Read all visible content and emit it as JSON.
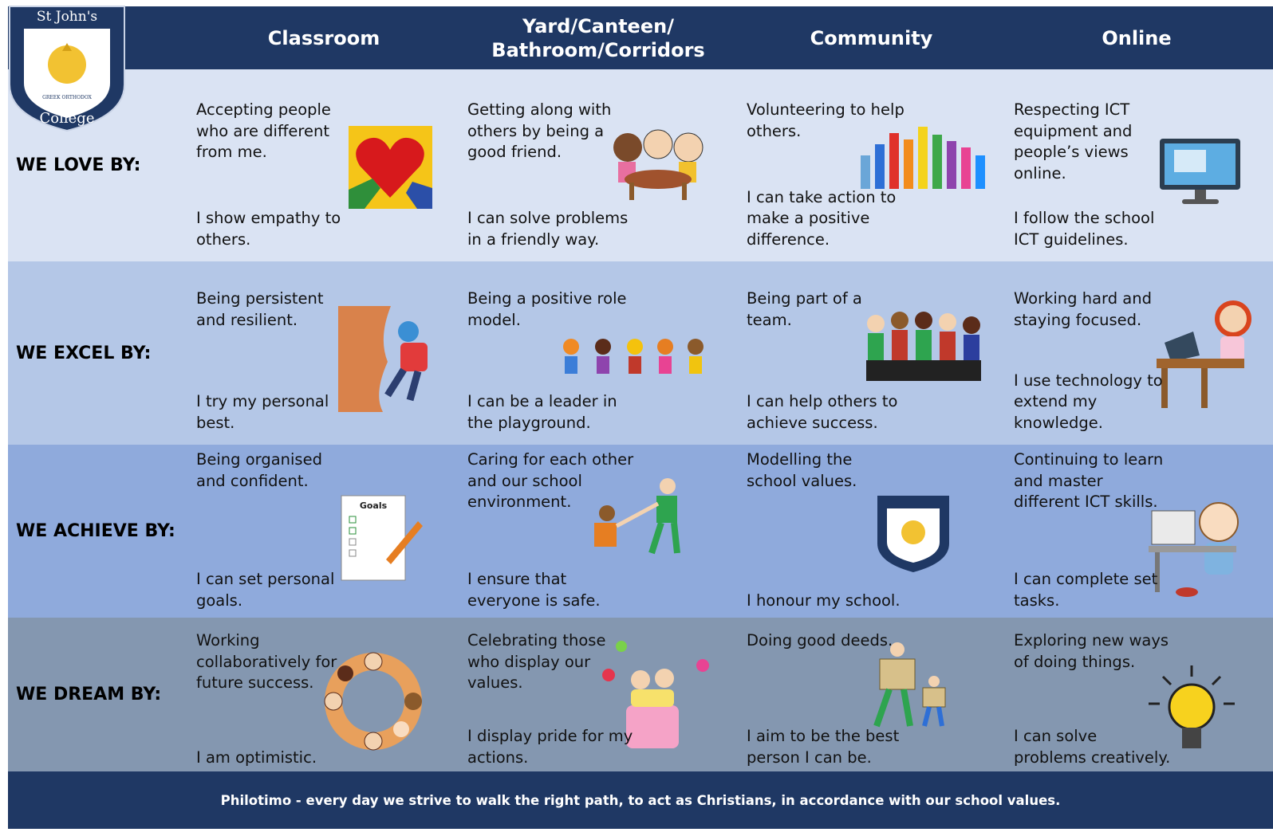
{
  "header": {
    "logo": {
      "name": "St John's",
      "motto": "GREEK ORTHODOX",
      "name2": "College"
    },
    "columns": [
      "Classroom",
      "Yard/Canteen/ Bathroom/Corridors",
      "Community",
      "Online"
    ]
  },
  "rows": [
    {
      "label": "WE LOVE BY:",
      "cells": [
        {
          "top": "Accepting people who are different from me.",
          "bottom": "I show empathy to others."
        },
        {
          "top": "Getting along with others by being a good friend.",
          "bottom": "I can solve problems in a friendly way."
        },
        {
          "top": "Volunteering to help others.",
          "bottom": "I can take action to make a positive difference."
        },
        {
          "top": "Respecting ICT equipment and people’s views online.",
          "bottom": "I follow the school ICT guidelines."
        }
      ]
    },
    {
      "label": "WE EXCEL BY:",
      "cells": [
        {
          "top": "Being persistent and resilient.",
          "bottom": "I try my personal best."
        },
        {
          "top": "Being a positive role model.",
          "bottom": "I can be a leader in the playground."
        },
        {
          "top": "Being part of a team.",
          "bottom": "I can help others to achieve success."
        },
        {
          "top": "Working hard and staying focused.",
          "bottom": "I use technology to extend my knowledge."
        }
      ]
    },
    {
      "label": "WE ACHIEVE BY:",
      "cells": [
        {
          "top": "Being organised and confident.",
          "bottom": "I can set personal goals."
        },
        {
          "top": "Caring for each other and our school environment.",
          "bottom": "I ensure that everyone is safe."
        },
        {
          "top": "Modelling the school values.",
          "bottom": "I honour my school."
        },
        {
          "top": "Continuing to learn and master different ICT skills.",
          "bottom": "I can complete set tasks."
        }
      ]
    },
    {
      "label": "WE DREAM BY:",
      "cells": [
        {
          "top": "Working collaboratively for future success.",
          "bottom": "I am optimistic."
        },
        {
          "top": "Celebrating those who display our values.",
          "bottom": "I display pride for my actions."
        },
        {
          "top": "Doing good deeds.",
          "bottom": "I aim to be the best person I can be."
        },
        {
          "top": "Exploring new ways of doing things.",
          "bottom": "I can solve problems creatively."
        }
      ]
    }
  ],
  "footer": "Philotimo - every day we strive to walk the right path, to act as Christians, in accordance with our school values."
}
